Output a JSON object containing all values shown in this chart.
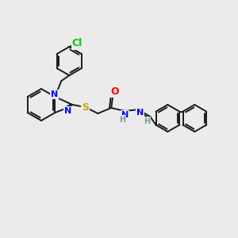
{
  "background_color": "#ebebeb",
  "bond_color": "#1a1a1a",
  "bond_width": 1.4,
  "atom_colors": {
    "Cl": "#00cc00",
    "N": "#0000ff",
    "O": "#ff0000",
    "S": "#ccaa00",
    "H": "#7a9a9a"
  }
}
